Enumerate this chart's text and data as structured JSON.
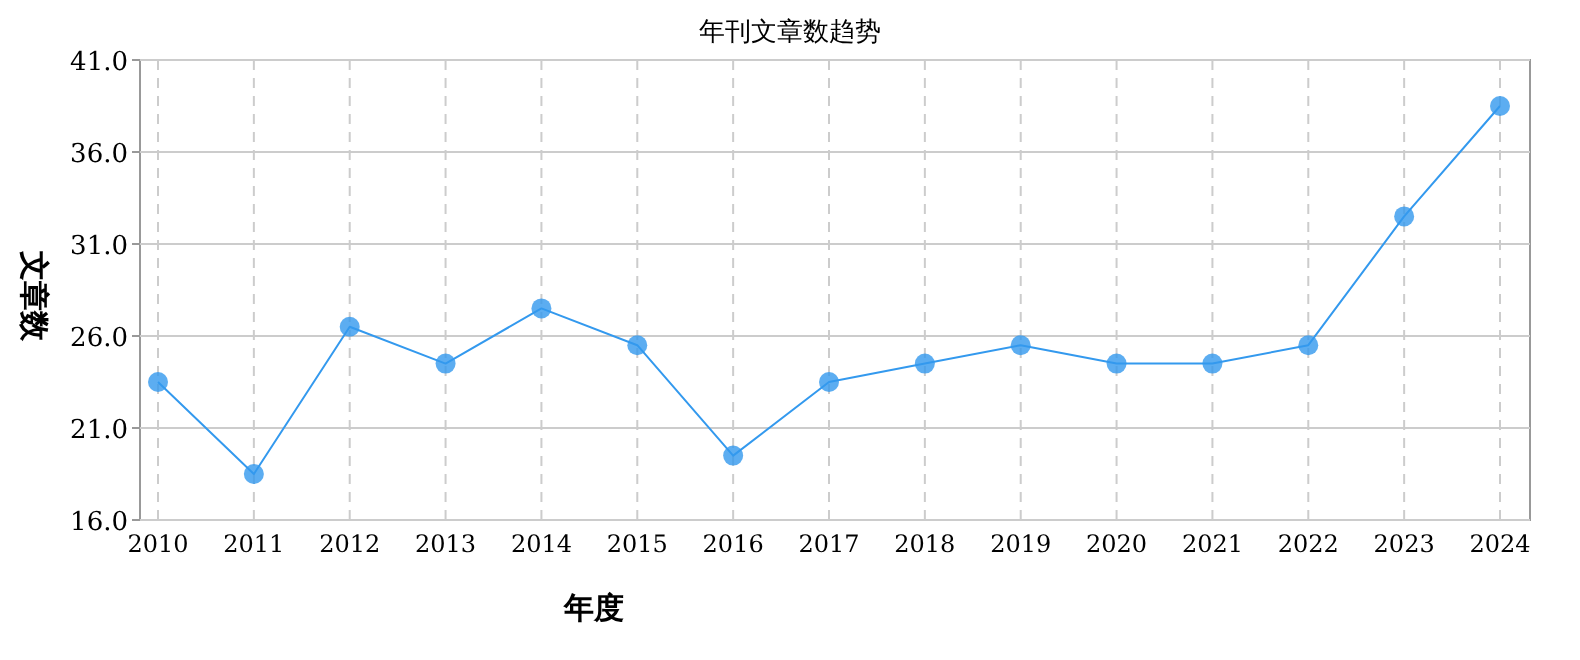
{
  "chart_data": {
    "type": "line",
    "title": "年刊文章数趋势",
    "xlabel": "年度",
    "ylabel": "文章数",
    "categories": [
      "2010",
      "2011",
      "2012",
      "2013",
      "2014",
      "2015",
      "2016",
      "2017",
      "2018",
      "2019",
      "2020",
      "2021",
      "2022",
      "2023",
      "2024"
    ],
    "series": [
      {
        "color": "#3399ee",
        "values": [
          23.5,
          18.5,
          26.5,
          24.5,
          27.5,
          25.5,
          19.5,
          23.5,
          24.5,
          25.5,
          24.5,
          24.5,
          25.5,
          32.5,
          38.5
        ]
      }
    ],
    "ylim": [
      16,
      41
    ],
    "yticks": [
      {
        "value": 16,
        "label": "16.0"
      },
      {
        "value": 21,
        "label": "21.0"
      },
      {
        "value": 26,
        "label": "26.0"
      },
      {
        "value": 31,
        "label": "31.0"
      },
      {
        "value": 36,
        "label": "36.0"
      },
      {
        "value": 41,
        "label": "41.0"
      }
    ],
    "grid": true,
    "marker": "circle",
    "line_style": "solid"
  }
}
